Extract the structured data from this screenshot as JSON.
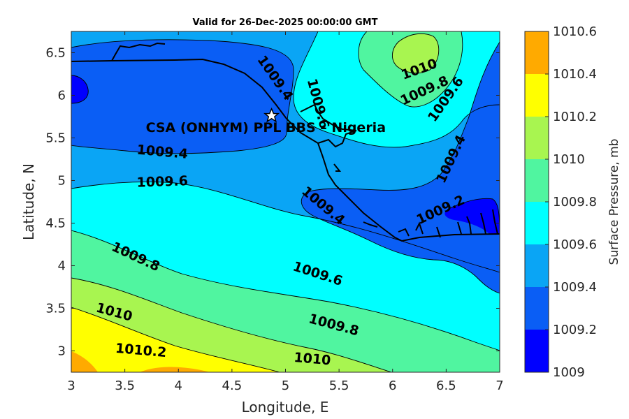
{
  "chart_data": {
    "type": "contour",
    "title": "Valid for 26-Dec-2025 00:00:00 GMT",
    "xlabel": "Longitude, E",
    "ylabel": "Latitude, N",
    "xlim": [
      3,
      7
    ],
    "ylim": [
      2.75,
      6.75
    ],
    "xticks": [
      "3",
      "3.5",
      "4",
      "4.5",
      "5",
      "5.5",
      "6",
      "6.5",
      "7"
    ],
    "yticks": [
      "3",
      "3.5",
      "4",
      "4.5",
      "5",
      "5.5",
      "6",
      "6.5"
    ],
    "colorbar": {
      "label": "Surface Pressure, mb",
      "levels": [
        1009,
        1009.2,
        1009.4,
        1009.6,
        1009.8,
        1010,
        1010.2,
        1010.4,
        1010.6
      ],
      "tick_labels": [
        "1009",
        "1009.2",
        "1009.4",
        "1009.6",
        "1009.8",
        "1010",
        "1010.2",
        "1010.4",
        "1010.6"
      ],
      "colors": [
        "#0000ff",
        "#0a5ef5",
        "#0aa5f5",
        "#00ffff",
        "#50f5a0",
        "#a8f550",
        "#ffff00",
        "#ffaa00",
        "#ff5500"
      ]
    },
    "contour_labels": [
      {
        "text": "1009.4",
        "lon": 4.9,
        "lat": 6.2
      },
      {
        "text": "1009.6",
        "lon": 5.3,
        "lat": 5.9
      },
      {
        "text": "1010",
        "lon": 6.25,
        "lat": 6.3
      },
      {
        "text": "1009.8",
        "lon": 6.3,
        "lat": 6.05
      },
      {
        "text": "1009.6",
        "lon": 6.5,
        "lat": 5.95
      },
      {
        "text": "1009.4",
        "lon": 6.55,
        "lat": 5.25
      },
      {
        "text": "1009.2",
        "lon": 6.45,
        "lat": 4.65
      },
      {
        "text": "1009.4",
        "lon": 3.85,
        "lat": 5.33
      },
      {
        "text": "1009.6",
        "lon": 3.85,
        "lat": 4.98
      },
      {
        "text": "1009.4",
        "lon": 5.35,
        "lat": 4.7
      },
      {
        "text": "1009.8",
        "lon": 3.6,
        "lat": 4.1
      },
      {
        "text": "1009.6",
        "lon": 5.3,
        "lat": 3.9
      },
      {
        "text": "1010",
        "lon": 3.4,
        "lat": 3.45
      },
      {
        "text": "1009.8",
        "lon": 5.45,
        "lat": 3.3
      },
      {
        "text": "1010.2",
        "lon": 3.65,
        "lat": 3.0
      },
      {
        "text": "1010",
        "lon": 5.25,
        "lat": 2.9
      }
    ],
    "station": {
      "name": "CSA (ONHYM) PPL BBS – Nigeria",
      "lon": 4.87,
      "lat": 5.76
    }
  },
  "icons": {
    "station_marker": "star-icon",
    "coastline": "coastline-line"
  }
}
